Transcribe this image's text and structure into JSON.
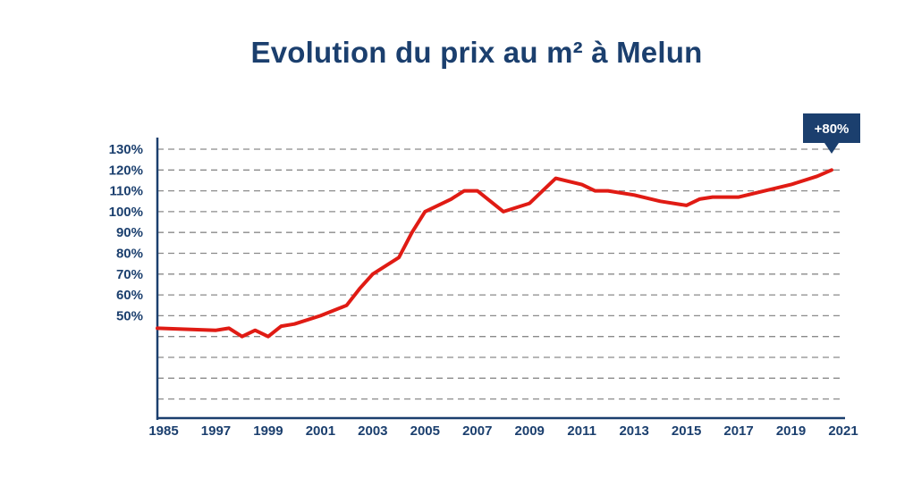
{
  "chart_data": {
    "type": "line",
    "title": "Evolution du prix au m² à Melun",
    "xlabel": "",
    "ylabel": "",
    "grid": true,
    "y_ticks": [
      "130%",
      "120%",
      "110%",
      "100%",
      "90%",
      "80%",
      "70%",
      "60%",
      "50%"
    ],
    "x_ticks": [
      "1985",
      "1997",
      "1999",
      "2001",
      "2003",
      "2005",
      "2007",
      "2009",
      "2011",
      "2013",
      "2015",
      "2017",
      "2019",
      "2021"
    ],
    "annotation": "+80%",
    "series": [
      {
        "color": "#e01b14",
        "points": [
          [
            "1985",
            44
          ],
          [
            "1997",
            43
          ],
          [
            "1997",
            44
          ],
          [
            "1998",
            40
          ],
          [
            "1998",
            43
          ],
          [
            "1999",
            40
          ],
          [
            "1999",
            45
          ],
          [
            "2000",
            46
          ],
          [
            "2001",
            50
          ],
          [
            "2002",
            55
          ],
          [
            "2002",
            63
          ],
          [
            "2003",
            70
          ],
          [
            "2004",
            78
          ],
          [
            "2004",
            90
          ],
          [
            "2005",
            100
          ],
          [
            "2006",
            106
          ],
          [
            "2006",
            110
          ],
          [
            "2007",
            110
          ],
          [
            "2008",
            100
          ],
          [
            "2009",
            104
          ],
          [
            "2009",
            110
          ],
          [
            "2010",
            116
          ],
          [
            "2011",
            113
          ],
          [
            "2011",
            110
          ],
          [
            "2012",
            110
          ],
          [
            "2013",
            108
          ],
          [
            "2014",
            105
          ],
          [
            "2015",
            103
          ],
          [
            "2015",
            106
          ],
          [
            "2016",
            107
          ],
          [
            "2017",
            107
          ],
          [
            "2018",
            110
          ],
          [
            "2019",
            113
          ],
          [
            "2020",
            117
          ],
          [
            "2021",
            120
          ]
        ]
      }
    ]
  }
}
